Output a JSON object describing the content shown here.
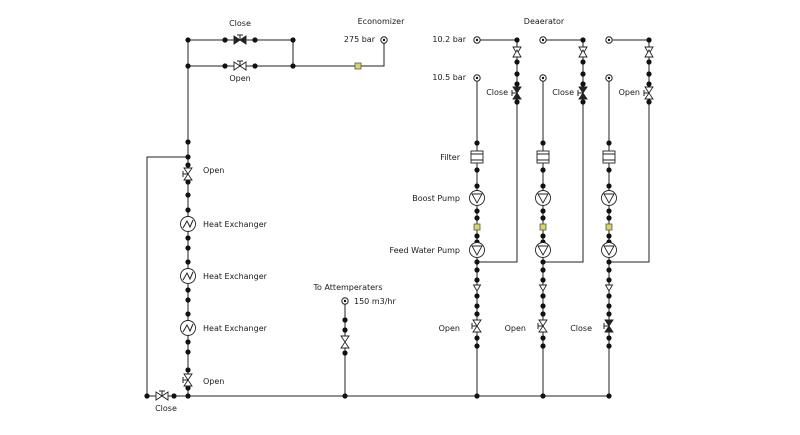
{
  "labels": {
    "top_close": "Close",
    "top_open": "Open",
    "economizer": "Economizer",
    "economizer_pressure": "275 bar",
    "deaerator": "Deaerator",
    "deaerator_pressure": "10.2 bar",
    "suction_pressure": "10.5 bar",
    "close_1": "Close",
    "close_2": "Close",
    "open_3": "Open",
    "filter": "Filter",
    "boost_pump": "Boost Pump",
    "feed_water_pump": "Feed Water Pump",
    "left_open_upper": "Open",
    "heat_exchanger_1": "Heat Exchanger",
    "heat_exchanger_2": "Heat Exchanger",
    "heat_exchanger_3": "Heat Exchanger",
    "left_open_lower": "Open",
    "bypass_close": "Close",
    "to_attemperators": "To Attemperaters",
    "attemperator_flow": "150 m3/hr",
    "pump_open_1": "Open",
    "pump_open_2": "Open",
    "pump_close_3": "Close"
  }
}
